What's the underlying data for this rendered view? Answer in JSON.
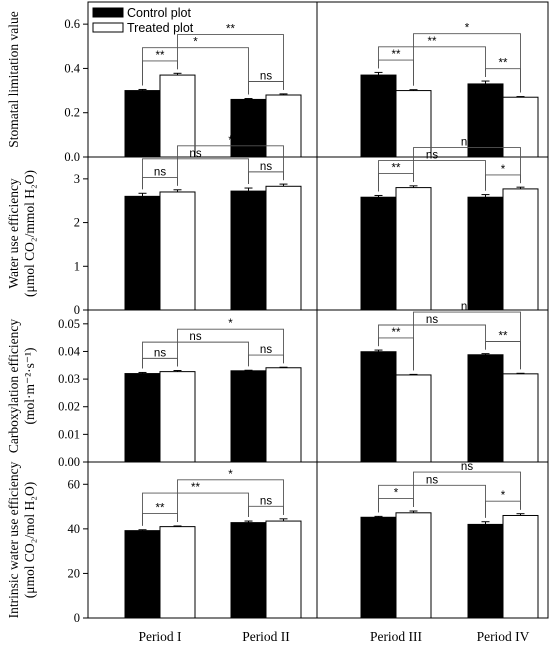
{
  "chart_data": {
    "type": "bar",
    "layout": "4 rows x 2 columns of grouped bar panels",
    "legend": {
      "position": "top-left",
      "entries": [
        {
          "label": "Control plot",
          "color": "#000000"
        },
        {
          "label": "Treated plot",
          "color": "#ffffff"
        }
      ]
    },
    "columns": [
      {
        "categories": [
          "Period I",
          "Period II"
        ]
      },
      {
        "categories": [
          "Period III",
          "Period IV"
        ]
      }
    ],
    "series_colors": {
      "control": "#000000",
      "treated": "#ffffff"
    },
    "rows": [
      {
        "key": "sl",
        "ylabel_lines": [
          "Stomatal limitation value"
        ],
        "ylim": [
          0,
          0.7
        ],
        "ticks": [
          "0.0",
          "0.2",
          "0.4",
          "0.6"
        ],
        "tick_values": [
          0,
          0.2,
          0.4,
          0.6
        ],
        "panels": [
          {
            "control": [
              0.3,
              0.26
            ],
            "treated": [
              0.37,
              0.28
            ],
            "control_err": [
              0.005,
              0.004
            ],
            "treated_err": [
              0.008,
              0.005
            ],
            "sig": [
              {
                "from": "c0",
                "to": "t0",
                "label": "**"
              },
              {
                "from": "c0",
                "to": "c1",
                "label": "*"
              },
              {
                "from": "t0",
                "to": "t1",
                "label": "**"
              },
              {
                "from": "c1",
                "to": "t1",
                "label": "ns"
              }
            ]
          },
          {
            "control": [
              0.37,
              0.33
            ],
            "treated": [
              0.3,
              0.27
            ],
            "control_err": [
              0.012,
              0.013
            ],
            "treated_err": [
              0.004,
              0.003
            ],
            "sig": [
              {
                "from": "c0",
                "to": "t0",
                "label": "**"
              },
              {
                "from": "c0",
                "to": "c1",
                "label": "**"
              },
              {
                "from": "t0",
                "to": "t1",
                "label": "*"
              },
              {
                "from": "c1",
                "to": "t1",
                "label": "**"
              }
            ]
          }
        ]
      },
      {
        "key": "wue",
        "ylabel_lines": [
          "Water use efficiency",
          "(μmol CO₂/mmol H₂O)"
        ],
        "ylim": [
          0,
          3.5
        ],
        "ticks": [
          "0",
          "1",
          "2",
          "3"
        ],
        "tick_values": [
          0,
          1,
          2,
          3
        ],
        "panels": [
          {
            "control": [
              2.6,
              2.72
            ],
            "treated": [
              2.7,
              2.83
            ],
            "control_err": [
              0.07,
              0.07
            ],
            "treated_err": [
              0.05,
              0.05
            ],
            "sig": [
              {
                "from": "c0",
                "to": "t0",
                "label": "ns"
              },
              {
                "from": "c0",
                "to": "c1",
                "label": "ns"
              },
              {
                "from": "t0",
                "to": "t1",
                "label": "*"
              },
              {
                "from": "c1",
                "to": "t1",
                "label": "ns"
              }
            ]
          },
          {
            "control": [
              2.58,
              2.58
            ],
            "treated": [
              2.8,
              2.77
            ],
            "control_err": [
              0.04,
              0.06
            ],
            "treated_err": [
              0.04,
              0.04
            ],
            "sig": [
              {
                "from": "c0",
                "to": "t0",
                "label": "**"
              },
              {
                "from": "c0",
                "to": "c1",
                "label": "ns"
              },
              {
                "from": "t0",
                "to": "t1",
                "label": "ns"
              },
              {
                "from": "c1",
                "to": "t1",
                "label": "*"
              }
            ]
          }
        ]
      },
      {
        "key": "ce",
        "ylabel_lines": [
          "Carboxylation efficiency",
          "(mol·m⁻²·s⁻¹)"
        ],
        "ylim": [
          0,
          0.055
        ],
        "ticks": [
          "0.00",
          "0.01",
          "0.02",
          "0.03",
          "0.04",
          "0.05"
        ],
        "tick_values": [
          0,
          0.01,
          0.02,
          0.03,
          0.04,
          0.05
        ],
        "panels": [
          {
            "control": [
              0.032,
              0.033
            ],
            "treated": [
              0.0327,
              0.0341
            ],
            "control_err": [
              0.0004,
              0.0002
            ],
            "treated_err": [
              0.0004,
              0.0002
            ],
            "sig": [
              {
                "from": "c0",
                "to": "t0",
                "label": "ns"
              },
              {
                "from": "c0",
                "to": "c1",
                "label": "ns"
              },
              {
                "from": "t0",
                "to": "t1",
                "label": "*"
              },
              {
                "from": "c1",
                "to": "t1",
                "label": "ns"
              }
            ]
          },
          {
            "control": [
              0.0399,
              0.0388
            ],
            "treated": [
              0.0315,
              0.0319
            ],
            "control_err": [
              0.0006,
              0.0004
            ],
            "treated_err": [
              0.0002,
              0.0002
            ],
            "sig": [
              {
                "from": "c0",
                "to": "t0",
                "label": "**"
              },
              {
                "from": "c0",
                "to": "c1",
                "label": "ns"
              },
              {
                "from": "t0",
                "to": "t1",
                "label": "ns"
              },
              {
                "from": "c1",
                "to": "t1",
                "label": "**"
              }
            ]
          }
        ]
      },
      {
        "key": "iwue",
        "ylabel_lines": [
          "Intrinsic water use efficiency",
          "(μmol CO₂/mol H₂O)"
        ],
        "ylim": [
          0,
          70
        ],
        "ticks": [
          "0",
          "20",
          "40",
          "60"
        ],
        "tick_values": [
          0,
          20,
          40,
          60
        ],
        "panels": [
          {
            "control": [
              39.2,
              42.8
            ],
            "treated": [
              41.0,
              43.5
            ],
            "control_err": [
              0.4,
              0.7
            ],
            "treated_err": [
              0.3,
              1.0
            ],
            "sig": [
              {
                "from": "c0",
                "to": "t0",
                "label": "**"
              },
              {
                "from": "c0",
                "to": "c1",
                "label": "**"
              },
              {
                "from": "t0",
                "to": "t1",
                "label": "*"
              },
              {
                "from": "c1",
                "to": "t1",
                "label": "ns"
              }
            ]
          },
          {
            "control": [
              45.2,
              42.0
            ],
            "treated": [
              47.2,
              46.0
            ],
            "control_err": [
              0.4,
              1.2
            ],
            "treated_err": [
              0.8,
              0.8
            ],
            "sig": [
              {
                "from": "c0",
                "to": "t0",
                "label": "*"
              },
              {
                "from": "c0",
                "to": "c1",
                "label": "ns"
              },
              {
                "from": "t0",
                "to": "t1",
                "label": "ns"
              },
              {
                "from": "c1",
                "to": "t1",
                "label": "*"
              }
            ]
          }
        ]
      }
    ]
  }
}
